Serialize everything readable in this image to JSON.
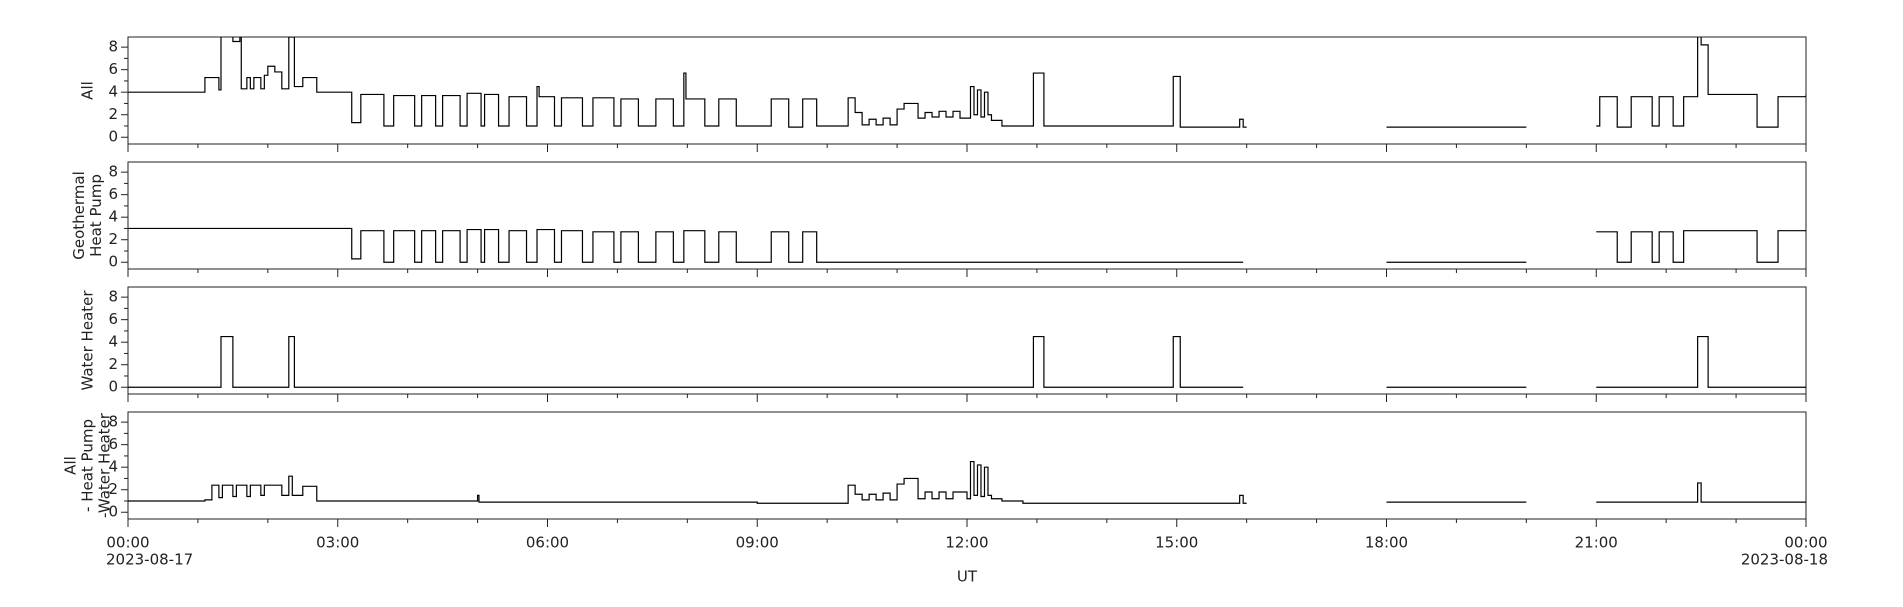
{
  "chart_data": [
    {
      "type": "line",
      "step": "post",
      "ylabel": [
        "All"
      ],
      "ylim": [
        -0.6,
        8.9
      ],
      "yticks": [
        0,
        2,
        4,
        6,
        8
      ],
      "yminorticks": [
        1,
        3,
        5,
        7
      ],
      "xlim": [
        0,
        24
      ],
      "xticks": [
        0,
        3,
        6,
        9,
        12,
        15,
        18,
        21,
        24
      ],
      "xminorticks": [
        1,
        2,
        4,
        5,
        7,
        8,
        10,
        11,
        13,
        14,
        16,
        17,
        19,
        20,
        22,
        23
      ],
      "color": "#000000",
      "x": [
        0,
        1.1,
        1.3,
        1.33,
        1.5,
        1.6,
        1.62,
        1.7,
        1.75,
        1.8,
        1.9,
        1.95,
        2.0,
        2.1,
        2.2,
        2.3,
        2.38,
        2.5,
        2.7,
        3.2,
        3.33,
        3.66,
        3.8,
        4.1,
        4.2,
        4.4,
        4.5,
        4.75,
        4.85,
        5.05,
        5.1,
        5.3,
        5.45,
        5.7,
        5.85,
        5.88,
        6.1,
        6.2,
        6.5,
        6.65,
        6.95,
        7.05,
        7.3,
        7.55,
        7.8,
        7.95,
        7.98,
        8.25,
        8.45,
        8.7,
        9.2,
        9.45,
        9.65,
        9.85,
        10.3,
        10.4,
        10.5,
        10.6,
        10.7,
        10.8,
        10.9,
        11.0,
        11.1,
        11.3,
        11.4,
        11.5,
        11.6,
        11.7,
        11.8,
        11.9,
        12.0,
        12.05,
        12.1,
        12.15,
        12.2,
        12.25,
        12.3,
        12.35,
        12.5,
        12.95,
        13.1,
        14.95,
        15.05,
        15.9,
        15.95,
        16.0,
        17,
        18,
        20,
        20.5,
        21,
        21.05,
        21.3,
        21.5,
        21.8,
        21.9,
        22.1,
        22.25,
        22.45,
        22.5,
        22.6,
        23.3,
        23.6,
        24
      ],
      "values": [
        4.0,
        5.3,
        4.2,
        9.2,
        8.5,
        9.2,
        4.3,
        5.3,
        4.3,
        5.3,
        4.3,
        5.5,
        6.3,
        5.8,
        4.3,
        8.9,
        4.5,
        5.3,
        4.0,
        1.3,
        3.8,
        1.0,
        3.7,
        1.0,
        3.7,
        1.0,
        3.7,
        1.0,
        3.9,
        1.0,
        3.8,
        1.0,
        3.6,
        1.0,
        4.5,
        3.6,
        1.0,
        3.5,
        1.0,
        3.5,
        1.0,
        3.4,
        1.0,
        3.4,
        1.0,
        5.7,
        3.4,
        1.0,
        3.4,
        1.0,
        3.4,
        0.9,
        3.4,
        1.0,
        3.5,
        2.2,
        1.1,
        1.6,
        1.1,
        1.7,
        1.1,
        2.5,
        3.0,
        1.7,
        2.2,
        1.8,
        2.3,
        1.8,
        2.3,
        1.7,
        1.7,
        4.5,
        2.0,
        4.2,
        1.8,
        4.0,
        2.0,
        1.5,
        1.0,
        5.7,
        1.0,
        5.4,
        0.9,
        1.6,
        0.9,
        0.9,
        null,
        0.9,
        0.9,
        null,
        1.0,
        3.6,
        0.9,
        3.6,
        1.0,
        3.6,
        1.0,
        3.6,
        9.2,
        8.2,
        3.8,
        0.9,
        3.6,
        3.8
      ]
    },
    {
      "type": "line",
      "step": "post",
      "ylabel": [
        "Geothermal",
        "Heat Pump"
      ],
      "ylim": [
        -0.6,
        8.9
      ],
      "yticks": [
        0,
        2,
        4,
        6,
        8
      ],
      "yminorticks": [
        1,
        3,
        5,
        7
      ],
      "xlim": [
        0,
        24
      ],
      "xticks": [
        0,
        3,
        6,
        9,
        12,
        15,
        18,
        21,
        24
      ],
      "xminorticks": [
        1,
        2,
        4,
        5,
        7,
        8,
        10,
        11,
        13,
        14,
        16,
        17,
        19,
        20,
        22,
        23
      ],
      "color": "#000000",
      "x": [
        0,
        3.2,
        3.33,
        3.66,
        3.8,
        4.1,
        4.2,
        4.4,
        4.5,
        4.75,
        4.85,
        5.05,
        5.1,
        5.3,
        5.45,
        5.7,
        5.85,
        6.1,
        6.2,
        6.5,
        6.65,
        6.95,
        7.05,
        7.3,
        7.55,
        7.8,
        7.95,
        8.25,
        8.45,
        8.7,
        9.2,
        9.45,
        9.65,
        9.85,
        15.95,
        17,
        18,
        20,
        20.5,
        21,
        21.3,
        21.5,
        21.8,
        21.9,
        22.1,
        22.25,
        23.3,
        23.6,
        24
      ],
      "values": [
        3.0,
        0.3,
        2.8,
        0,
        2.8,
        0,
        2.8,
        0,
        2.8,
        0,
        2.9,
        0,
        2.9,
        0,
        2.8,
        0,
        2.9,
        0,
        2.8,
        0,
        2.7,
        0,
        2.7,
        0,
        2.7,
        0,
        2.8,
        0,
        2.7,
        0,
        2.7,
        0,
        2.7,
        0,
        0,
        null,
        0,
        0,
        null,
        2.7,
        0,
        2.7,
        0,
        2.7,
        0,
        2.8,
        0,
        2.8,
        2.8
      ]
    },
    {
      "type": "line",
      "step": "post",
      "ylabel": [
        "Water Heater"
      ],
      "ylim": [
        -0.6,
        8.9
      ],
      "yticks": [
        0,
        2,
        4,
        6,
        8
      ],
      "yminorticks": [
        1,
        3,
        5,
        7
      ],
      "xlim": [
        0,
        24
      ],
      "xticks": [
        0,
        3,
        6,
        9,
        12,
        15,
        18,
        21,
        24
      ],
      "xminorticks": [
        1,
        2,
        4,
        5,
        7,
        8,
        10,
        11,
        13,
        14,
        16,
        17,
        19,
        20,
        22,
        23
      ],
      "color": "#000000",
      "x": [
        0,
        1.33,
        1.5,
        2.3,
        2.38,
        12.95,
        13.1,
        14.95,
        15.05,
        15.95,
        17,
        18,
        20,
        20.5,
        21,
        22.45,
        22.6,
        24
      ],
      "values": [
        0,
        4.5,
        0,
        4.5,
        0,
        4.5,
        0,
        4.5,
        0,
        0,
        null,
        0,
        0,
        null,
        0,
        4.5,
        0,
        0
      ]
    },
    {
      "type": "line",
      "step": "post",
      "ylabel": [
        "All",
        "- Heat Pump",
        "-Water Heater"
      ],
      "ylim": [
        -0.6,
        8.9
      ],
      "yticks": [
        0,
        2,
        4,
        6,
        8
      ],
      "yminorticks": [
        1,
        3,
        5,
        7
      ],
      "xlim": [
        0,
        24
      ],
      "xminorticks": [
        1,
        2,
        4,
        5,
        7,
        8,
        10,
        11,
        13,
        14,
        16,
        17,
        19,
        20,
        22,
        23
      ],
      "color": "#000000",
      "xticks": [
        {
          "value": 0,
          "label": "00:00"
        },
        {
          "value": 3,
          "label": "03:00"
        },
        {
          "value": 6,
          "label": "06:00"
        },
        {
          "value": 9,
          "label": "09:00"
        },
        {
          "value": 12,
          "label": "12:00"
        },
        {
          "value": 15,
          "label": "15:00"
        },
        {
          "value": 18,
          "label": "18:00"
        },
        {
          "value": 21,
          "label": "21:00"
        },
        {
          "value": 24,
          "label": "00:00"
        }
      ],
      "date_labels": [
        {
          "value": 0,
          "label": "2023-08-17"
        },
        {
          "value": 24,
          "label": "2023-08-18"
        }
      ],
      "xlabel": "UT",
      "x": [
        0,
        1.1,
        1.2,
        1.3,
        1.35,
        1.5,
        1.55,
        1.7,
        1.75,
        1.9,
        1.95,
        2.2,
        2.3,
        2.35,
        2.5,
        2.7,
        5.0,
        5.02,
        9.0,
        10.3,
        10.4,
        10.5,
        10.6,
        10.7,
        10.8,
        10.9,
        11.0,
        11.1,
        11.3,
        11.4,
        11.5,
        11.6,
        11.7,
        11.8,
        12.0,
        12.05,
        12.1,
        12.15,
        12.2,
        12.25,
        12.3,
        12.35,
        12.5,
        12.8,
        15.9,
        15.95,
        16.0,
        17,
        18,
        20,
        20.5,
        21,
        22.45,
        22.5,
        24
      ],
      "values": [
        1.0,
        1.1,
        2.4,
        1.3,
        2.4,
        1.4,
        2.4,
        1.4,
        2.4,
        1.5,
        2.4,
        1.5,
        3.2,
        1.5,
        2.3,
        1.0,
        1.5,
        0.9,
        0.8,
        2.4,
        1.6,
        1.1,
        1.6,
        1.1,
        1.7,
        1.1,
        2.5,
        3.0,
        1.2,
        1.8,
        1.2,
        1.8,
        1.2,
        1.8,
        1.2,
        4.5,
        1.5,
        4.2,
        1.4,
        4.0,
        1.5,
        1.2,
        1.0,
        0.8,
        1.5,
        0.8,
        0.8,
        null,
        0.9,
        0.9,
        null,
        0.9,
        2.6,
        0.9,
        0.9
      ]
    }
  ]
}
